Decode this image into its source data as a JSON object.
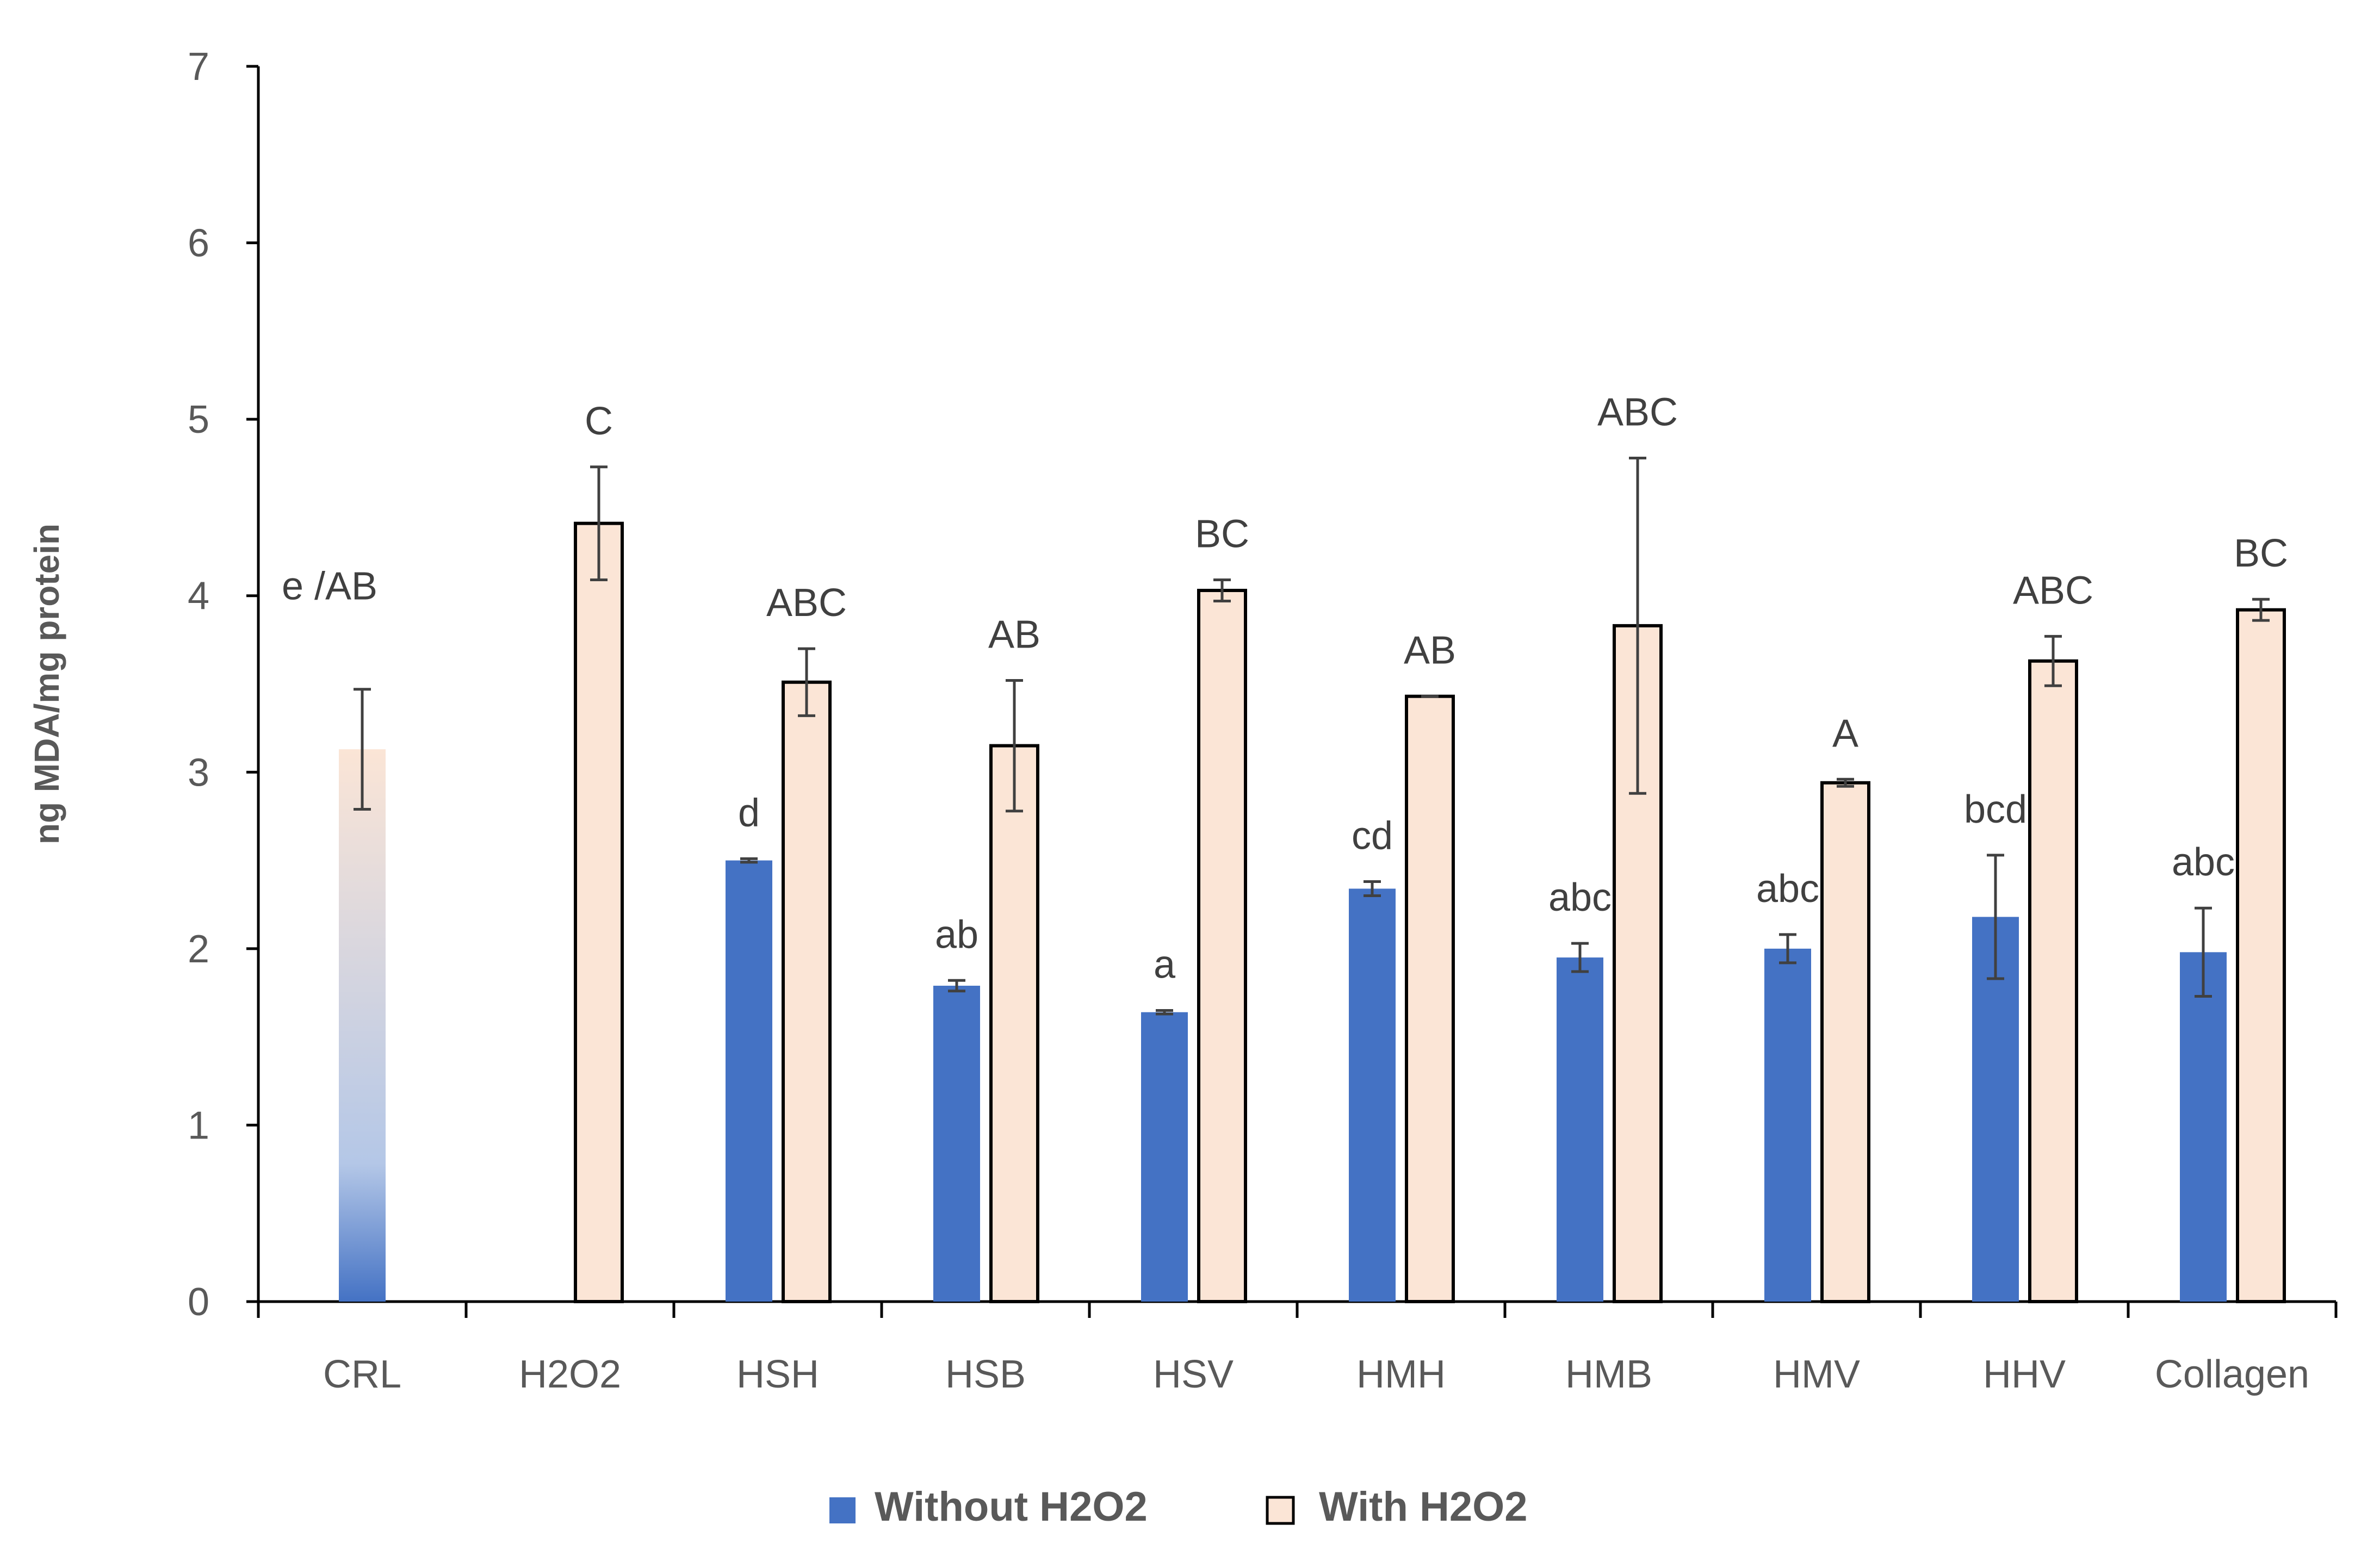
{
  "chart_data": {
    "type": "bar",
    "title": "",
    "xlabel": "",
    "ylabel": "ng MDA/mg protein",
    "ylim": [
      0,
      7
    ],
    "yticks": [
      0,
      1,
      2,
      3,
      4,
      5,
      6,
      7
    ],
    "grid": false,
    "legend_position": "bottom-center",
    "categories": [
      "CRL",
      "H2O2",
      "HSH",
      "HSB",
      "HSV",
      "HMH",
      "HMB",
      "HMV",
      "HHV",
      "Collagen"
    ],
    "series": [
      {
        "name": "Without H2O2",
        "color": "#4472c4",
        "values": [
          null,
          null,
          2.5,
          1.79,
          1.64,
          2.34,
          1.95,
          2.0,
          2.18,
          1.98
        ],
        "errors": [
          null,
          null,
          0.01,
          0.03,
          0.01,
          0.04,
          0.08,
          0.08,
          0.35,
          0.25
        ],
        "letters": [
          "",
          "",
          "d",
          "ab",
          "a",
          "cd",
          "abc",
          "abc",
          "bcd",
          "abc"
        ]
      },
      {
        "name": "With H2O2",
        "color": "#fbe5d6",
        "values": [
          null,
          4.41,
          3.51,
          3.15,
          4.03,
          3.43,
          3.83,
          2.94,
          3.63,
          3.92
        ],
        "errors": [
          null,
          0.32,
          0.19,
          0.37,
          0.06,
          0.0,
          0.95,
          0.02,
          0.14,
          0.06
        ],
        "letters": [
          "",
          "C",
          "ABC",
          "AB",
          "BC",
          "AB",
          "ABC",
          "A",
          "ABC",
          "BC"
        ]
      }
    ],
    "control": {
      "category": "CRL",
      "value": 3.13,
      "error": 0.34,
      "label": "e /AB",
      "gradient_colors": [
        "#4472c4",
        "#b4c7e7",
        "#fbe5d6"
      ]
    }
  }
}
